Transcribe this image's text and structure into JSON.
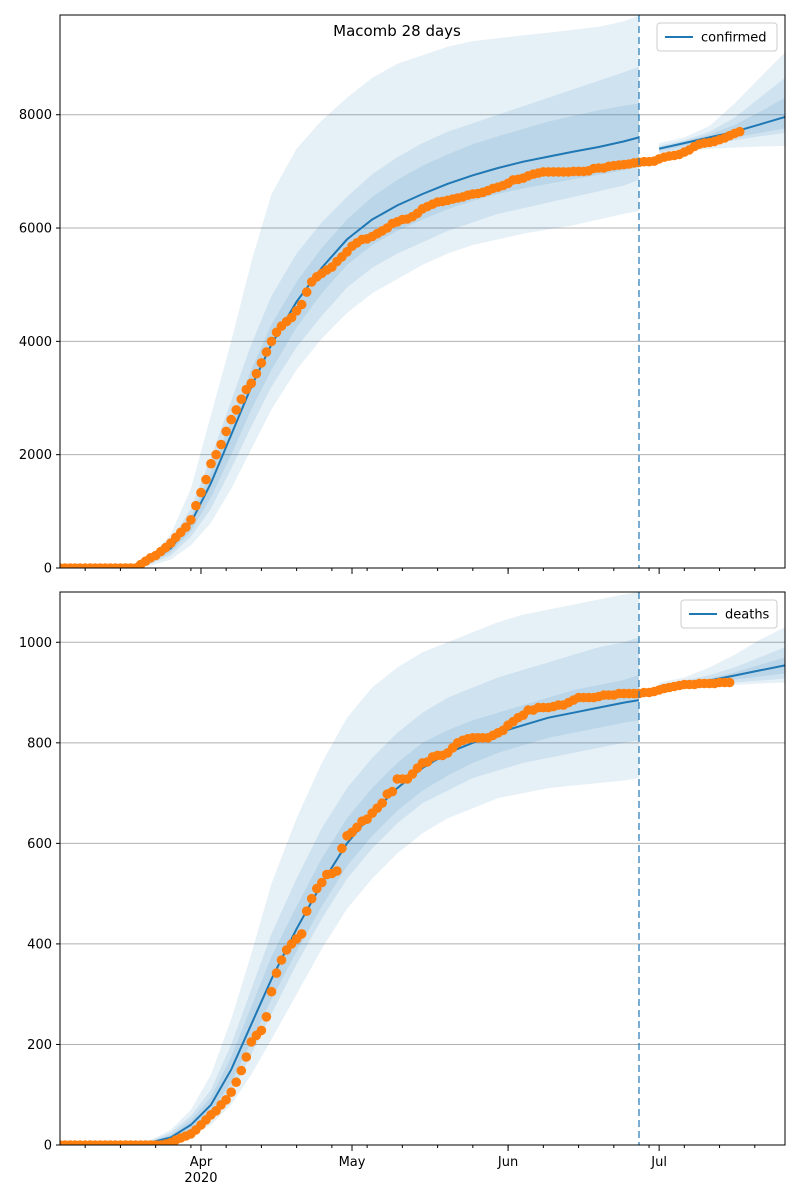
{
  "figure": {
    "title": "Macomb 28 days",
    "colors": {
      "line": "#1f77b4",
      "band": "#1f77b4",
      "observed": "#ff7f0e",
      "grid": "#b0b0b0",
      "vline": "#1f77b4"
    }
  },
  "x_axis": {
    "tick_labels": [
      "Apr",
      "May",
      "Jun",
      "Jul"
    ],
    "tick_dates": [
      "2020-04-01",
      "2020-05-01",
      "2020-06-01",
      "2020-07-01"
    ],
    "year_label": "2020",
    "start": "2020-03-04",
    "end": "2020-07-26",
    "split_date": "2020-06-27"
  },
  "chart_data": [
    {
      "type": "line",
      "legend": "confirmed",
      "legend_loc": "upper right",
      "grid": "y",
      "ylim": [
        0,
        9760
      ],
      "yticks": [
        0,
        2000,
        4000,
        6000,
        8000
      ],
      "model_line": {
        "x": [
          "2020-03-04",
          "2020-03-18",
          "2020-03-22",
          "2020-03-26",
          "2020-03-30",
          "2020-04-03",
          "2020-04-07",
          "2020-04-11",
          "2020-04-15",
          "2020-04-20",
          "2020-04-25",
          "2020-04-30",
          "2020-05-05",
          "2020-05-10",
          "2020-05-15",
          "2020-05-20",
          "2020-05-25",
          "2020-05-30",
          "2020-06-04",
          "2020-06-09",
          "2020-06-14",
          "2020-06-19",
          "2020-06-24",
          "2020-06-27",
          "2020-07-01",
          "2020-07-06",
          "2020-07-11",
          "2020-07-16",
          "2020-07-21",
          "2020-07-26"
        ],
        "y": [
          0,
          30,
          120,
          350,
          800,
          1500,
          2350,
          3200,
          3950,
          4700,
          5300,
          5800,
          6150,
          6400,
          6600,
          6780,
          6930,
          7060,
          7170,
          7260,
          7350,
          7430,
          7530,
          7600,
          7400,
          7500,
          7600,
          7700,
          7830,
          7960
        ]
      },
      "bands": [
        {
          "level": "outer",
          "upper": [
            0,
            50,
            200,
            600,
            1400,
            2700,
            4000,
            5400,
            6600,
            7400,
            7900,
            8300,
            8650,
            8900,
            9050,
            9200,
            9300,
            9350,
            9400,
            9450,
            9500,
            9550,
            9650,
            9750,
            7500,
            7600,
            7800,
            8200,
            8650,
            9100
          ],
          "lower": [
            0,
            10,
            40,
            150,
            400,
            800,
            1400,
            2100,
            2800,
            3500,
            4050,
            4500,
            4850,
            5100,
            5350,
            5550,
            5700,
            5800,
            5900,
            5980,
            6050,
            6150,
            6250,
            6300,
            7300,
            7350,
            7400,
            7420,
            7440,
            7450
          ]
        },
        {
          "level": "middle",
          "upper": [
            0,
            40,
            160,
            480,
            1050,
            1950,
            2950,
            3950,
            4800,
            5550,
            6100,
            6550,
            6950,
            7250,
            7500,
            7700,
            7850,
            8000,
            8150,
            8300,
            8450,
            8600,
            8750,
            8850,
            7450,
            7550,
            7700,
            7950,
            8300,
            8650
          ],
          "lower": [
            0,
            15,
            70,
            220,
            550,
            1050,
            1750,
            2500,
            3200,
            3900,
            4450,
            4950,
            5300,
            5550,
            5750,
            5950,
            6100,
            6250,
            6350,
            6450,
            6550,
            6650,
            6750,
            6850,
            7330,
            7400,
            7480,
            7550,
            7620,
            7680
          ]
        },
        {
          "level": "inner",
          "upper": [
            0,
            35,
            140,
            420,
            900,
            1700,
            2600,
            3500,
            4300,
            5050,
            5650,
            6150,
            6550,
            6850,
            7100,
            7300,
            7480,
            7620,
            7750,
            7880,
            7980,
            8080,
            8160,
            8200,
            7420,
            7530,
            7650,
            7820,
            8050,
            8300
          ],
          "lower": [
            0,
            20,
            90,
            280,
            650,
            1250,
            2000,
            2800,
            3500,
            4250,
            4850,
            5350,
            5700,
            5950,
            6150,
            6330,
            6480,
            6600,
            6700,
            6780,
            6860,
            6940,
            7020,
            7080,
            7360,
            7450,
            7530,
            7600,
            7680,
            7760
          ]
        }
      ],
      "observed": {
        "x_start": "2020-03-04",
        "y": [
          0,
          0,
          0,
          0,
          0,
          0,
          0,
          0,
          0,
          0,
          0,
          0,
          0,
          0,
          0,
          0,
          60,
          120,
          180,
          220,
          290,
          360,
          440,
          540,
          630,
          720,
          850,
          1100,
          1330,
          1560,
          1840,
          2000,
          2180,
          2410,
          2620,
          2790,
          2980,
          3150,
          3260,
          3430,
          3620,
          3810,
          4000,
          4160,
          4270,
          4350,
          4420,
          4540,
          4650,
          4870,
          5050,
          5140,
          5200,
          5260,
          5310,
          5410,
          5490,
          5580,
          5680,
          5740,
          5800,
          5810,
          5850,
          5900,
          5950,
          6000,
          6080,
          6110,
          6150,
          6160,
          6200,
          6260,
          6340,
          6380,
          6420,
          6460,
          6470,
          6490,
          6510,
          6530,
          6550,
          6580,
          6600,
          6610,
          6630,
          6660,
          6700,
          6720,
          6750,
          6790,
          6850,
          6860,
          6880,
          6920,
          6950,
          6970,
          6990,
          6990,
          6990,
          6990,
          6990,
          6990,
          7000,
          7000,
          7000,
          7010,
          7050,
          7060,
          7060,
          7090,
          7100,
          7110,
          7120,
          7130,
          7150,
          7160,
          7170,
          7170,
          7180,
          7220,
          7250,
          7270,
          7280,
          7300,
          7340,
          7380,
          7440,
          7480,
          7500,
          7510,
          7530,
          7560,
          7590,
          7630,
          7670,
          7700
        ]
      }
    },
    {
      "type": "line",
      "legend": "deaths",
      "legend_loc": "upper right",
      "grid": "y",
      "ylim": [
        0,
        1100
      ],
      "yticks": [
        0,
        200,
        400,
        600,
        800,
        1000
      ],
      "model_line": {
        "x": [
          "2020-03-04",
          "2020-03-22",
          "2020-03-26",
          "2020-03-30",
          "2020-04-03",
          "2020-04-07",
          "2020-04-11",
          "2020-04-15",
          "2020-04-20",
          "2020-04-25",
          "2020-04-30",
          "2020-05-05",
          "2020-05-10",
          "2020-05-15",
          "2020-05-20",
          "2020-05-25",
          "2020-05-30",
          "2020-06-04",
          "2020-06-09",
          "2020-06-14",
          "2020-06-19",
          "2020-06-24",
          "2020-06-27",
          "2020-07-01",
          "2020-07-06",
          "2020-07-11",
          "2020-07-16",
          "2020-07-21",
          "2020-07-26"
        ],
        "y": [
          0,
          5,
          15,
          40,
          80,
          150,
          240,
          330,
          430,
          520,
          600,
          660,
          710,
          750,
          780,
          800,
          820,
          835,
          850,
          860,
          870,
          880,
          885,
          912,
          918,
          924,
          934,
          944,
          954
        ]
      },
      "bands": [
        {
          "level": "outer",
          "upper": [
            0,
            10,
            30,
            70,
            140,
            250,
            380,
            520,
            650,
            760,
            850,
            910,
            950,
            980,
            1000,
            1020,
            1040,
            1055,
            1065,
            1075,
            1085,
            1095,
            1100,
            920,
            930,
            950,
            975,
            1005,
            1030
          ],
          "lower": [
            0,
            2,
            6,
            18,
            40,
            80,
            140,
            210,
            300,
            390,
            470,
            530,
            580,
            620,
            650,
            670,
            690,
            700,
            710,
            715,
            720,
            725,
            730,
            905,
            910,
            912,
            915,
            918,
            920
          ]
        },
        {
          "level": "middle",
          "upper": [
            0,
            8,
            25,
            58,
            110,
            200,
            310,
            420,
            530,
            630,
            710,
            770,
            820,
            860,
            890,
            910,
            930,
            945,
            960,
            975,
            990,
            1000,
            1010,
            916,
            924,
            935,
            950,
            970,
            990
          ],
          "lower": [
            0,
            3,
            9,
            26,
            55,
            105,
            180,
            260,
            360,
            450,
            530,
            590,
            640,
            680,
            705,
            730,
            745,
            760,
            770,
            780,
            790,
            800,
            805,
            908,
            912,
            916,
            920,
            924,
            928
          ]
        },
        {
          "level": "inner",
          "upper": [
            0,
            7,
            20,
            50,
            95,
            175,
            275,
            375,
            475,
            570,
            650,
            710,
            760,
            800,
            825,
            845,
            860,
            875,
            890,
            905,
            915,
            925,
            935,
            914,
            920,
            928,
            940,
            955,
            970
          ],
          "lower": [
            0,
            4,
            11,
            31,
            65,
            125,
            205,
            290,
            385,
            475,
            555,
            615,
            665,
            705,
            735,
            760,
            780,
            795,
            810,
            820,
            830,
            840,
            845,
            910,
            915,
            920,
            926,
            932,
            938
          ]
        }
      ],
      "observed": {
        "x_start": "2020-03-04",
        "y": [
          0,
          0,
          0,
          0,
          0,
          0,
          0,
          0,
          0,
          0,
          0,
          0,
          0,
          0,
          0,
          0,
          0,
          0,
          0,
          0,
          0,
          2,
          5,
          10,
          14,
          18,
          22,
          30,
          40,
          50,
          60,
          68,
          80,
          90,
          105,
          125,
          148,
          175,
          205,
          218,
          228,
          255,
          305,
          342,
          368,
          388,
          400,
          410,
          420,
          465,
          490,
          510,
          522,
          538,
          540,
          545,
          590,
          615,
          622,
          632,
          644,
          648,
          660,
          670,
          680,
          698,
          703,
          728,
          728,
          728,
          738,
          750,
          760,
          762,
          772,
          775,
          775,
          780,
          790,
          800,
          805,
          808,
          810,
          810,
          810,
          810,
          815,
          820,
          825,
          835,
          842,
          850,
          855,
          865,
          865,
          870,
          870,
          870,
          872,
          875,
          875,
          880,
          885,
          890,
          890,
          890,
          890,
          892,
          895,
          895,
          895,
          898,
          898,
          898,
          898,
          898,
          900,
          900,
          902,
          905,
          908,
          910,
          912,
          914,
          916,
          916,
          916,
          918,
          918,
          918,
          918,
          920,
          920,
          920
        ]
      }
    }
  ]
}
